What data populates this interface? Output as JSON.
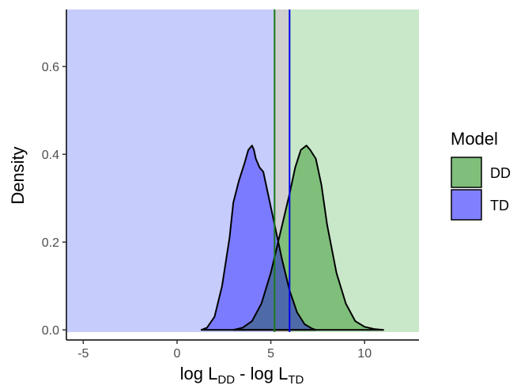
{
  "chart_data": {
    "type": "area",
    "title": "",
    "xlabel": {
      "main": "log L",
      "sub1": "DD",
      "mid": " - log L",
      "sub2": "TD"
    },
    "ylabel": "Density",
    "xlim": [
      -5.9,
      12.9
    ],
    "ylim": [
      -0.005,
      0.73
    ],
    "xticks": [
      -5,
      0,
      5,
      10
    ],
    "yticks": [
      0.0,
      0.2,
      0.4,
      0.6
    ],
    "ytick_labels": [
      "0.0",
      "0.2",
      "0.4",
      "0.6"
    ],
    "grid": false,
    "legend": {
      "title": "Model",
      "position": "right",
      "entries": [
        {
          "label": "DD",
          "color": "#7fbf7b"
        },
        {
          "label": "TD",
          "color": "#8080ff"
        }
      ]
    },
    "background_regions": [
      {
        "name": "TD region",
        "from": -5.9,
        "to": 5.2,
        "color": "#c6ccfc"
      },
      {
        "name": "between",
        "from": 5.2,
        "to": 6.0,
        "color": "#cfcfcf"
      },
      {
        "name": "DD region",
        "from": 6.0,
        "to": 12.9,
        "color": "#c9e8c9"
      }
    ],
    "vlines": [
      {
        "x": 5.2,
        "color": "#1a7a1a"
      },
      {
        "x": 6.0,
        "color": "#0000ee"
      }
    ],
    "series": [
      {
        "name": "TD",
        "color": "#7b7bff",
        "x": [
          1.3,
          1.6,
          2.0,
          2.4,
          2.8,
          3.0,
          3.3,
          3.6,
          3.8,
          4.0,
          4.1,
          4.2,
          4.4,
          4.6,
          4.7,
          5.0,
          5.3,
          5.6,
          6.0,
          6.4,
          6.8,
          7.2,
          7.4
        ],
        "y": [
          0.0,
          0.005,
          0.03,
          0.1,
          0.21,
          0.29,
          0.34,
          0.38,
          0.41,
          0.42,
          0.41,
          0.39,
          0.37,
          0.36,
          0.34,
          0.28,
          0.22,
          0.16,
          0.09,
          0.04,
          0.013,
          0.003,
          0.0
        ]
      },
      {
        "name": "DD",
        "color": "#7fbf7b",
        "x": [
          3.0,
          3.5,
          4.0,
          4.5,
          5.0,
          5.5,
          6.0,
          6.3,
          6.6,
          6.9,
          7.1,
          7.4,
          7.7,
          8.0,
          8.5,
          9.0,
          9.5,
          10.0,
          10.5,
          11.0
        ],
        "y": [
          0.0,
          0.005,
          0.02,
          0.06,
          0.13,
          0.22,
          0.31,
          0.37,
          0.41,
          0.42,
          0.41,
          0.39,
          0.33,
          0.24,
          0.13,
          0.06,
          0.02,
          0.007,
          0.002,
          0.0
        ]
      }
    ]
  }
}
